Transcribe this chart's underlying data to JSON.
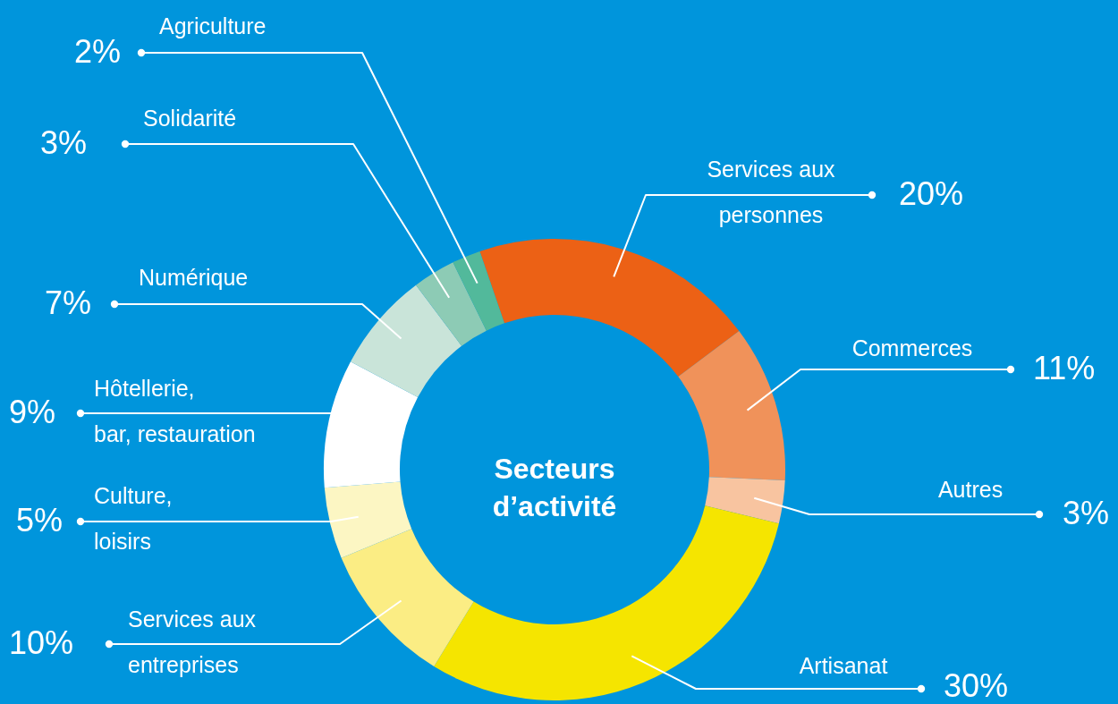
{
  "chart_data": {
    "type": "donut",
    "title": "Secteurs d’activité",
    "categories": [
      "Services aux\npersonnes",
      "Commerces",
      "Autres",
      "Artisanat",
      "Services aux\nentreprises",
      "Culture,\nloisirs",
      "Hôtellerie,\nbar, restauration",
      "Numérique",
      "Solidarité",
      "Agriculture"
    ],
    "values": [
      20,
      11,
      3,
      30,
      10,
      5,
      9,
      7,
      3,
      2
    ],
    "value_labels": [
      "20%",
      "11%",
      "3%",
      "30%",
      "10%",
      "5%",
      "9%",
      "7%",
      "3%",
      "2%"
    ],
    "colors": [
      "#ec6115",
      "#f0925a",
      "#f8c4a0",
      "#f5e500",
      "#fbed84",
      "#fcf6c3",
      "#ffffff",
      "#c9e4d9",
      "#8dcbb5",
      "#52b99b"
    ]
  }
}
